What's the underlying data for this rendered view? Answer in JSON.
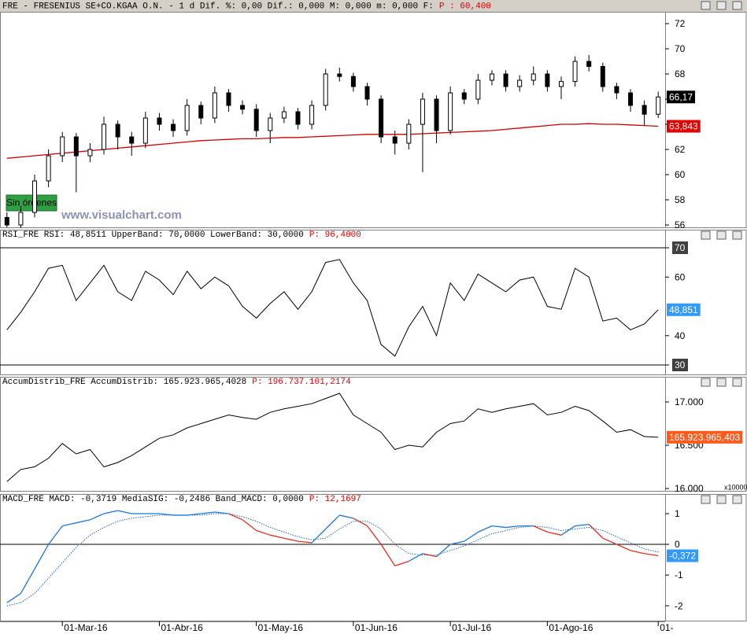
{
  "chart_data": [
    {
      "type": "candlestick",
      "title": "FRE - FRESENIUS SE+CO.KGAA O.N. -  1 d Dif. %: 0,00 Dif.: 0,000 M: 0,000 m: 0,000 F:",
      "title_extra": "P : 60,400",
      "button": "Sin órdenes",
      "watermark": "www.visualchart.com",
      "ylim": [
        55.75,
        72.94
      ],
      "yticks": [
        56,
        58,
        60,
        62,
        64,
        66,
        68,
        70,
        72
      ],
      "up_color": "#ffffff",
      "down_color": "#000000",
      "open": [
        56.6,
        56.0,
        57.0,
        59.5,
        61.5,
        63.0,
        61.5,
        62.0,
        64.0,
        63.0,
        62.5,
        64.5,
        64.0,
        63.5,
        65.5,
        64.5,
        66.5,
        65.5,
        65.2,
        63.5,
        64.5,
        65.0,
        64.0,
        65.5,
        68.0,
        67.8,
        67.0,
        66.0,
        63.0,
        62.5,
        64.0,
        66.0,
        63.5,
        66.5,
        66.0,
        67.5,
        68.0,
        67.0,
        67.5,
        68.0,
        67.0,
        67.4,
        69.0,
        68.6,
        67.0,
        66.5,
        65.5,
        64.8
      ],
      "high": [
        57.0,
        57.5,
        60.0,
        62.0,
        63.4,
        63.3,
        62.5,
        64.6,
        64.3,
        63.4,
        65.0,
        64.9,
        64.4,
        66.0,
        65.8,
        67.0,
        66.8,
        65.9,
        65.6,
        64.9,
        65.4,
        65.3,
        65.9,
        68.4,
        68.5,
        68.1,
        67.3,
        66.3,
        63.5,
        64.4,
        66.5,
        66.3,
        67.0,
        66.8,
        68.0,
        68.3,
        68.3,
        67.9,
        68.6,
        68.3,
        67.8,
        69.4,
        69.5,
        68.9,
        67.3,
        66.8,
        65.9,
        66.6
      ],
      "low": [
        55.8,
        55.7,
        56.6,
        59.0,
        61.0,
        58.6,
        61.0,
        61.6,
        62.0,
        61.5,
        62.1,
        63.5,
        63.0,
        63.1,
        64.0,
        64.1,
        65.0,
        64.8,
        63.0,
        62.5,
        64.1,
        63.6,
        63.6,
        65.1,
        67.4,
        66.6,
        65.5,
        62.5,
        61.6,
        62.0,
        60.2,
        62.5,
        63.2,
        65.6,
        65.6,
        67.1,
        66.6,
        66.6,
        67.1,
        66.6,
        66.0,
        67.0,
        68.2,
        66.6,
        66.0,
        65.0,
        63.9,
        64.5
      ],
      "close": [
        56.0,
        57.0,
        59.5,
        61.5,
        63.0,
        61.5,
        62.0,
        64.0,
        63.0,
        62.5,
        64.5,
        64.0,
        63.5,
        65.5,
        64.5,
        66.5,
        65.5,
        65.2,
        63.5,
        64.5,
        65.0,
        64.0,
        65.5,
        68.0,
        67.8,
        67.0,
        66.0,
        63.0,
        62.5,
        64.0,
        66.0,
        63.5,
        66.5,
        66.0,
        67.5,
        68.0,
        67.0,
        67.5,
        68.0,
        67.0,
        67.4,
        69.0,
        68.6,
        67.0,
        66.5,
        65.5,
        64.8,
        66.17
      ],
      "ma": {
        "color": "#cc0000",
        "values": [
          61.3,
          61.4,
          61.5,
          61.6,
          61.7,
          61.8,
          61.9,
          62.0,
          62.1,
          62.2,
          62.3,
          62.4,
          62.5,
          62.6,
          62.7,
          62.75,
          62.8,
          62.85,
          62.85,
          62.9,
          62.95,
          62.95,
          63.0,
          63.05,
          63.1,
          63.15,
          63.2,
          63.2,
          63.2,
          63.2,
          63.25,
          63.3,
          63.35,
          63.4,
          63.45,
          63.5,
          63.6,
          63.7,
          63.8,
          63.9,
          64.0,
          64.0,
          64.05,
          64.0,
          64.0,
          63.95,
          63.9,
          63.843
        ]
      },
      "tags": [
        {
          "value": 66.17,
          "label": "66,17",
          "color": "#000000"
        },
        {
          "value": 63.843,
          "label": "63,843",
          "color": "#e00000"
        }
      ]
    },
    {
      "type": "line",
      "title": "RSI_FRE RSI: 48,8511 UpperBand: 70,0000 LowerBand: 30,0000",
      "title_extra": "P: 96,4000",
      "ylim": [
        26.51,
        76.17
      ],
      "yticks": [
        30,
        40,
        60,
        70
      ],
      "bands": [
        30,
        70
      ],
      "color": "#000000",
      "values": [
        42,
        48,
        55,
        63,
        64,
        52,
        58,
        64,
        55,
        52,
        62,
        59,
        54,
        62,
        56,
        60,
        57,
        50,
        46,
        51,
        55,
        49,
        55,
        65,
        66,
        58,
        52,
        37,
        33,
        43,
        50,
        40,
        58,
        52,
        61,
        58,
        55,
        59,
        60,
        50,
        49,
        63,
        60,
        45,
        46,
        42,
        44,
        48.8511
      ],
      "tags": [
        {
          "value": 48.8511,
          "label": "48,851",
          "color": "#3399ff"
        }
      ]
    },
    {
      "type": "line",
      "title": "AccumDistrib_FRE AccumDistrib: 165.923.965,4028",
      "title_extra": "P: 196.737.101,2174",
      "ylim": [
        15964,
        17291
      ],
      "yticks": [
        {
          "value": 16000,
          "label": "16.000"
        },
        {
          "value": 16500,
          "label": "16.500"
        },
        {
          "value": 17000,
          "label": "17.000"
        }
      ],
      "y_unit": "x10000",
      "color": "#000000",
      "values": [
        16080,
        16220,
        16250,
        16350,
        16520,
        16400,
        16450,
        16250,
        16300,
        16380,
        16480,
        16580,
        16620,
        16700,
        16750,
        16800,
        16850,
        16820,
        16800,
        16880,
        16920,
        16950,
        16980,
        17040,
        17100,
        16850,
        16750,
        16650,
        16450,
        16500,
        16480,
        16650,
        16750,
        16780,
        16920,
        16880,
        16920,
        16950,
        16980,
        16850,
        16880,
        16950,
        16900,
        16780,
        16650,
        16680,
        16600,
        16592.3965403
      ],
      "tags": [
        {
          "value": 16592.3965403,
          "label": "165.923.965,403",
          "color": "#ff5a1e"
        }
      ]
    },
    {
      "type": "macd",
      "title": "MACD_FRE MACD: -0,3719 MediaSIG: -0,2486 Band_MACD: 0,0000",
      "title_extra": "P: 12,1697",
      "ylim": [
        -2.51,
        1.64
      ],
      "yticks": [
        -2,
        -1,
        0,
        1
      ],
      "baseline": 0,
      "macd": {
        "color_up": "#1e78dc",
        "color_down": "#e03020",
        "values": [
          -1.9,
          -1.6,
          -0.8,
          0.0,
          0.6,
          0.7,
          0.8,
          1.0,
          1.1,
          1.0,
          1.0,
          1.0,
          0.95,
          0.95,
          1.0,
          1.05,
          1.0,
          0.8,
          0.45,
          0.3,
          0.2,
          0.1,
          0.05,
          0.5,
          0.95,
          0.85,
          0.6,
          0.0,
          -0.7,
          -0.55,
          -0.3,
          -0.4,
          0.0,
          0.1,
          0.4,
          0.6,
          0.55,
          0.6,
          0.6,
          0.4,
          0.3,
          0.6,
          0.65,
          0.2,
          0.0,
          -0.2,
          -0.3,
          -0.3719
        ]
      },
      "signal": {
        "color": "#1e64c8",
        "values": [
          -2.0,
          -1.9,
          -1.6,
          -1.1,
          -0.6,
          -0.1,
          0.3,
          0.55,
          0.75,
          0.85,
          0.9,
          0.95,
          0.95,
          0.95,
          0.95,
          1.0,
          1.0,
          0.9,
          0.75,
          0.55,
          0.4,
          0.25,
          0.15,
          0.2,
          0.5,
          0.75,
          0.75,
          0.5,
          0.0,
          -0.3,
          -0.35,
          -0.35,
          -0.2,
          -0.05,
          0.15,
          0.35,
          0.45,
          0.55,
          0.6,
          0.55,
          0.45,
          0.5,
          0.55,
          0.45,
          0.25,
          0.05,
          -0.15,
          -0.2486
        ]
      },
      "categories": [
        null,
        null,
        null,
        null,
        "01-Mar-16",
        null,
        null,
        null,
        null,
        null,
        null,
        "01-Abr-16",
        null,
        null,
        null,
        null,
        null,
        null,
        "01-May-16",
        null,
        null,
        null,
        null,
        null,
        null,
        "01-Jun-16",
        null,
        null,
        null,
        null,
        null,
        null,
        "01-Jul-16",
        null,
        null,
        null,
        null,
        null,
        null,
        "01-Ago-16",
        null,
        null,
        null,
        null,
        null,
        null,
        null,
        "01-"
      ],
      "tags": [
        {
          "value": -0.3719,
          "label": "-0,372",
          "color": "#3399ff"
        }
      ]
    }
  ]
}
